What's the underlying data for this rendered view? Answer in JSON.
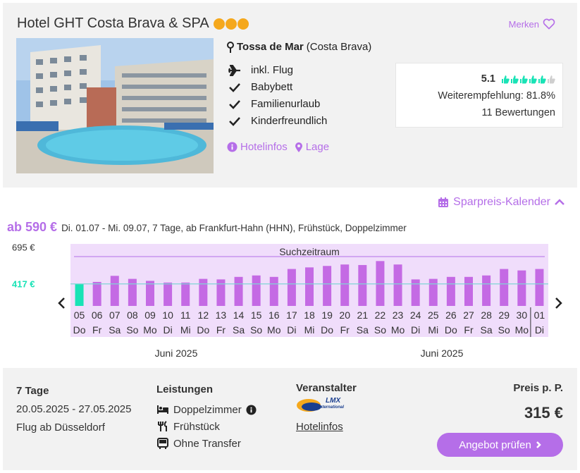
{
  "hotel": {
    "name": "Hotel GHT Costa Brava & SPA",
    "stars": 3,
    "merken_label": "Merken",
    "location_town": "Tossa de Mar",
    "location_region": "(Costa Brava)",
    "features": [
      "inkl. Flug",
      "Babybett",
      "Familienurlaub",
      "Kinderfreundlich"
    ],
    "links": [
      "Hotelinfos",
      "Lage"
    ]
  },
  "rating": {
    "score": "5.1",
    "thumbs_filled": 5,
    "thumbs_total": 6,
    "recommendation": "Weiterempfehlung: 81.8%",
    "reviews": "11 Bewertungen"
  },
  "calendar": {
    "toggle_label": "Sparpreis-Kalender",
    "price_prefix": "ab 590 €",
    "price_details": "Di. 01.07 - Mi. 09.07, 7 Tage, ab Frankfurt-Hahn (HHN), Frühstück, Doppelzimmer"
  },
  "chart_data": {
    "type": "bar",
    "title": "Suchzeitraum",
    "y_tick_labels": [
      "695 €",
      "417 €"
    ],
    "y_ticks": [
      695,
      417
    ],
    "reference_line": 417,
    "ylim": [
      250,
      720
    ],
    "categories": [
      "05",
      "06",
      "07",
      "08",
      "09",
      "10",
      "11",
      "12",
      "13",
      "14",
      "15",
      "16",
      "17",
      "18",
      "19",
      "20",
      "21",
      "22",
      "23",
      "24",
      "25",
      "26",
      "27",
      "28",
      "29",
      "30",
      "01"
    ],
    "weekdays": [
      "Do",
      "Fr",
      "Sa",
      "So",
      "Mo",
      "Di",
      "Mi",
      "Do",
      "Fr",
      "Sa",
      "So",
      "Mo",
      "Di",
      "Mi",
      "Do",
      "Fr",
      "Sa",
      "So",
      "Mo",
      "Di",
      "Mi",
      "Do",
      "Fr",
      "Sa",
      "So",
      "Mo",
      "Di"
    ],
    "values": [
      417,
      432,
      478,
      455,
      440,
      427,
      427,
      455,
      451,
      470,
      481,
      470,
      530,
      542,
      553,
      564,
      560,
      590,
      564,
      451,
      455,
      470,
      470,
      481,
      530,
      519,
      530
    ],
    "highlight_index": 0,
    "month_labels": [
      "Juni 2025",
      "Juni 2025"
    ],
    "colors": {
      "bar": "#c46ae4",
      "highlight": "#19e3b6",
      "band": "#f0ddfb",
      "line": "#7fd6d6"
    }
  },
  "offer": {
    "duration": "7 Tage",
    "dates": "20.05.2025 - 27.05.2025",
    "flight": "Flug ab Düsseldorf",
    "leistungen_label": "Leistungen",
    "leistungen": [
      "Doppelzimmer",
      "Frühstück",
      "Ohne Transfer"
    ],
    "veranstalter_label": "Veranstalter",
    "veranstalter_logo_text": "LMX",
    "veranstalter_logo_sub": "International",
    "veranstalter_link": "Hotelinfos",
    "price_label": "Preis p. P.",
    "price": "315 €",
    "button_label": "Angebot prüfen"
  },
  "colors": {
    "accent": "#b56ee8",
    "panel": "#f2f2f2",
    "star": "#f5a81c",
    "thumb": "#19e3b6"
  }
}
